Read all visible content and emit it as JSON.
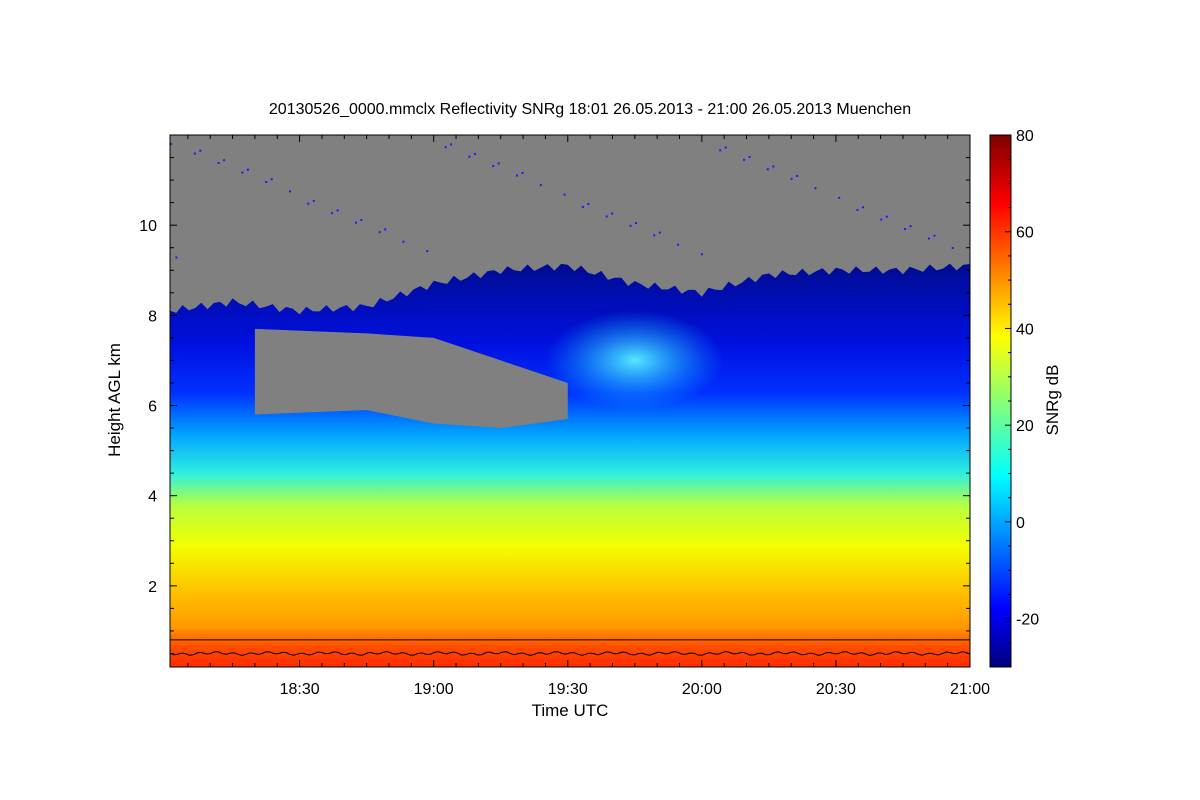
{
  "chart_data": {
    "type": "heatmap",
    "title": "20130526_0000.mmclx Reflectivity SNRg   18:01 26.05.2013 - 21:00 26.05.2013 Muenchen",
    "xlabel": "Time UTC",
    "ylabel": "Height AGL km",
    "xlim": [
      "18:01",
      "21:00"
    ],
    "ylim": [
      0.2,
      12.0
    ],
    "xticks": [
      "18:30",
      "19:00",
      "19:30",
      "20:00",
      "20:30",
      "21:00"
    ],
    "yticks": [
      "2",
      "4",
      "6",
      "8",
      "10"
    ],
    "colorbar": {
      "label": "SNRg dB",
      "range": [
        -30,
        80
      ],
      "ticks": [
        "-20",
        "0",
        "20",
        "40",
        "60",
        "80"
      ],
      "colormap": "jet"
    },
    "no_signal_color": "#808080",
    "cloud_top_km": [
      {
        "time": "18:01",
        "height": 8.1
      },
      {
        "time": "18:15",
        "height": 8.3
      },
      {
        "time": "18:30",
        "height": 8.1
      },
      {
        "time": "18:45",
        "height": 8.2
      },
      {
        "time": "19:00",
        "height": 8.7
      },
      {
        "time": "19:15",
        "height": 9.0
      },
      {
        "time": "19:30",
        "height": 9.1
      },
      {
        "time": "19:45",
        "height": 8.7
      },
      {
        "time": "20:00",
        "height": 8.5
      },
      {
        "time": "20:15",
        "height": 8.9
      },
      {
        "time": "20:30",
        "height": 9.0
      },
      {
        "time": "20:45",
        "height": 9.0
      },
      {
        "time": "21:00",
        "height": 9.1
      }
    ],
    "clear_gap_km": [
      {
        "time": "18:20",
        "bottom": 5.8,
        "top": 7.7
      },
      {
        "time": "18:45",
        "bottom": 5.9,
        "top": 7.6
      },
      {
        "time": "19:00",
        "bottom": 5.6,
        "top": 7.5
      },
      {
        "time": "19:15",
        "bottom": 5.5,
        "top": 7.0
      },
      {
        "time": "19:30",
        "bottom": 5.7,
        "top": 6.5
      }
    ]
  }
}
